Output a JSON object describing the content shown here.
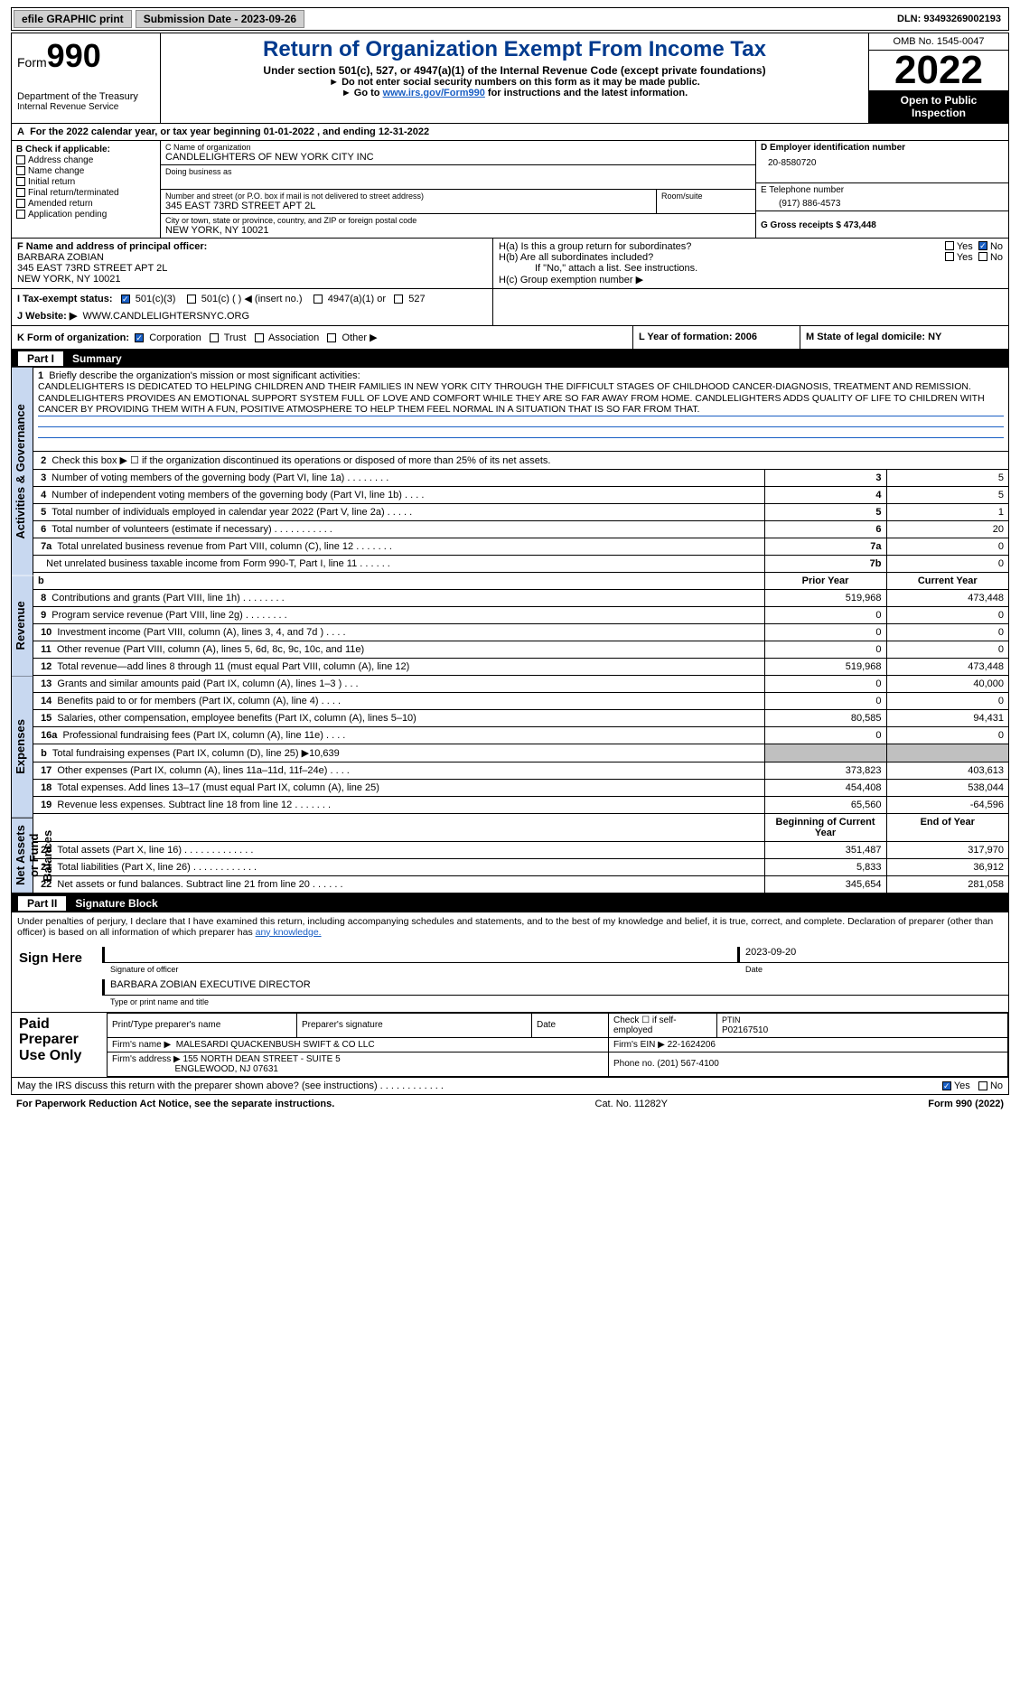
{
  "topbar": {
    "efile": "efile GRAPHIC print",
    "submission_label": "Submission Date - 2023-09-26",
    "dln": "DLN: 93493269002193"
  },
  "header": {
    "form_prefix": "Form",
    "form_num": "990",
    "dept": "Department of the Treasury",
    "irs": "Internal Revenue Service",
    "title": "Return of Organization Exempt From Income Tax",
    "sub1": "Under section 501(c), 527, or 4947(a)(1) of the Internal Revenue Code (except private foundations)",
    "sub2": "Do not enter social security numbers on this form as it may be made public.",
    "sub3_pre": "Go to ",
    "sub3_link": "www.irs.gov/Form990",
    "sub3_post": " for instructions and the latest information.",
    "omb": "OMB No. 1545-0047",
    "year": "2022",
    "open": "Open to Public Inspection"
  },
  "lineA": "For the 2022 calendar year, or tax year beginning 01-01-2022    , and ending 12-31-2022",
  "B": {
    "title": "B Check if applicable:",
    "items": [
      "Address change",
      "Name change",
      "Initial return",
      "Final return/terminated",
      "Amended return",
      "Application pending"
    ]
  },
  "C": {
    "name_label": "C Name of organization",
    "name": "CANDLELIGHTERS OF NEW YORK CITY INC",
    "dba_label": "Doing business as",
    "street_label": "Number and street (or P.O. box if mail is not delivered to street address)",
    "street": "345 EAST 73RD STREET APT 2L",
    "room_label": "Room/suite",
    "city_label": "City or town, state or province, country, and ZIP or foreign postal code",
    "city": "NEW YORK, NY  10021"
  },
  "D": {
    "label": "D Employer identification number",
    "value": "20-8580720"
  },
  "E": {
    "label": "E Telephone number",
    "value": "(917) 886-4573"
  },
  "G": "G Gross receipts $ 473,448",
  "F": {
    "label": "F  Name and address of principal officer:",
    "name": "BARBARA ZOBIAN",
    "addr1": "345 EAST 73RD STREET APT 2L",
    "addr2": "NEW YORK, NY  10021"
  },
  "H": {
    "a": "H(a)  Is this a group return for subordinates?",
    "b": "H(b)  Are all subordinates included?",
    "b_note": "If \"No,\" attach a list. See instructions.",
    "c": "H(c)  Group exemption number ▶",
    "yes": "Yes",
    "no": "No"
  },
  "I": {
    "label": "I    Tax-exempt status:",
    "opts": [
      "501(c)(3)",
      "501(c) (   ) ◀ (insert no.)",
      "4947(a)(1) or",
      "527"
    ]
  },
  "J": {
    "label": "J   Website: ▶",
    "value": "WWW.CANDLELIGHTERSNYC.ORG"
  },
  "K": {
    "label": "K Form of organization:",
    "opts": [
      "Corporation",
      "Trust",
      "Association",
      "Other ▶"
    ]
  },
  "L": "L Year of formation: 2006",
  "M": "M State of legal domicile: NY",
  "partI": {
    "num": "Part I",
    "title": "Summary"
  },
  "sidebar": {
    "ag": "Activities & Governance",
    "rev": "Revenue",
    "exp": "Expenses",
    "net": "Net Assets or Fund Balances"
  },
  "summary": {
    "l1_label": "Briefly describe the organization's mission or most significant activities:",
    "l1_text": "CANDLELIGHTERS IS DEDICATED TO HELPING CHILDREN AND THEIR FAMILIES IN NEW YORK CITY THROUGH THE DIFFICULT STAGES OF CHILDHOOD CANCER-DIAGNOSIS, TREATMENT AND REMISSION. CANDLELIGHTERS PROVIDES AN EMOTIONAL SUPPORT SYSTEM FULL OF LOVE AND COMFORT WHILE THEY ARE SO FAR AWAY FROM HOME. CANDLELIGHTERS ADDS QUALITY OF LIFE TO CHILDREN WITH CANCER BY PROVIDING THEM WITH A FUN, POSITIVE ATMOSPHERE TO HELP THEM FEEL NORMAL IN A SITUATION THAT IS SO FAR FROM THAT.",
    "l2": "Check this box ▶  ☐  if the organization discontinued its operations or disposed of more than 25% of its net assets.",
    "rows_ag": [
      {
        "n": "3",
        "d": "Number of voting members of the governing body (Part VI, line 1a)   .   .   .   .   .   .   .   .",
        "k": "3",
        "v": "5"
      },
      {
        "n": "4",
        "d": "Number of independent voting members of the governing body (Part VI, line 1b)   .   .   .   .",
        "k": "4",
        "v": "5"
      },
      {
        "n": "5",
        "d": "Total number of individuals employed in calendar year 2022 (Part V, line 2a)   .   .   .   .   .",
        "k": "5",
        "v": "1"
      },
      {
        "n": "6",
        "d": "Total number of volunteers (estimate if necessary)   .   .   .   .   .   .   .   .   .   .   .",
        "k": "6",
        "v": "20"
      },
      {
        "n": "7a",
        "d": "Total unrelated business revenue from Part VIII, column (C), line 12   .   .   .   .   .   .   .",
        "k": "7a",
        "v": "0"
      },
      {
        "n": "",
        "d": "Net unrelated business taxable income from Form 990-T, Part I, line 11   .   .   .   .   .   .",
        "k": "7b",
        "v": "0"
      }
    ],
    "hdr_prior": "Prior Year",
    "hdr_curr": "Current Year",
    "rows_rev": [
      {
        "n": "8",
        "d": "Contributions and grants (Part VIII, line 1h)   .   .   .   .   .   .   .   .",
        "p": "519,968",
        "c": "473,448"
      },
      {
        "n": "9",
        "d": "Program service revenue (Part VIII, line 2g)   .   .   .   .   .   .   .   .",
        "p": "0",
        "c": "0"
      },
      {
        "n": "10",
        "d": "Investment income (Part VIII, column (A), lines 3, 4, and 7d )   .   .   .   .",
        "p": "0",
        "c": "0"
      },
      {
        "n": "11",
        "d": "Other revenue (Part VIII, column (A), lines 5, 6d, 8c, 9c, 10c, and 11e)",
        "p": "0",
        "c": "0"
      },
      {
        "n": "12",
        "d": "Total revenue—add lines 8 through 11 (must equal Part VIII, column (A), line 12)",
        "p": "519,968",
        "c": "473,448"
      }
    ],
    "rows_exp": [
      {
        "n": "13",
        "d": "Grants and similar amounts paid (Part IX, column (A), lines 1–3 )   .   .   .",
        "p": "0",
        "c": "40,000"
      },
      {
        "n": "14",
        "d": "Benefits paid to or for members (Part IX, column (A), line 4)   .   .   .   .",
        "p": "0",
        "c": "0"
      },
      {
        "n": "15",
        "d": "Salaries, other compensation, employee benefits (Part IX, column (A), lines 5–10)",
        "p": "80,585",
        "c": "94,431"
      },
      {
        "n": "16a",
        "d": "Professional fundraising fees (Part IX, column (A), line 11e)   .   .   .   .",
        "p": "0",
        "c": "0"
      },
      {
        "n": "b",
        "d": "Total fundraising expenses (Part IX, column (D), line 25) ▶10,639",
        "p": "",
        "c": "",
        "grey": true
      },
      {
        "n": "17",
        "d": "Other expenses (Part IX, column (A), lines 11a–11d, 11f–24e)   .   .   .   .",
        "p": "373,823",
        "c": "403,613"
      },
      {
        "n": "18",
        "d": "Total expenses. Add lines 13–17 (must equal Part IX, column (A), line 25)",
        "p": "454,408",
        "c": "538,044"
      },
      {
        "n": "19",
        "d": "Revenue less expenses. Subtract line 18 from line 12   .   .   .   .   .   .   .",
        "p": "65,560",
        "c": "-64,596"
      }
    ],
    "hdr_beg": "Beginning of Current Year",
    "hdr_end": "End of Year",
    "rows_net": [
      {
        "n": "20",
        "d": "Total assets (Part X, line 16)   .   .   .   .   .   .   .   .   .   .   .   .   .",
        "p": "351,487",
        "c": "317,970"
      },
      {
        "n": "21",
        "d": "Total liabilities (Part X, line 26)   .   .   .   .   .   .   .   .   .   .   .   .",
        "p": "5,833",
        "c": "36,912"
      },
      {
        "n": "22",
        "d": "Net assets or fund balances. Subtract line 21 from line 20   .   .   .   .   .   .",
        "p": "345,654",
        "c": "281,058"
      }
    ]
  },
  "partII": {
    "num": "Part II",
    "title": "Signature Block"
  },
  "sig": {
    "pen": "Under penalties of perjury, I declare that I have examined this return, including accompanying schedules and statements, and to the best of my knowledge and belief, it is true, correct, and complete. Declaration of preparer (other than officer) is based on all information of which preparer has ",
    "pen_link": "any knowledge.",
    "sign_here": "Sign Here",
    "sig_officer": "Signature of officer",
    "date": "2023-09-20",
    "date_label": "Date",
    "name": "BARBARA ZOBIAN  EXECUTIVE DIRECTOR",
    "name_label": "Type or print name and title"
  },
  "paid": {
    "lbl": "Paid Preparer Use Only",
    "h1": "Print/Type preparer's name",
    "h2": "Preparer's signature",
    "h3": "Date",
    "h4": "Check ☐ if self-employed",
    "h5_l": "PTIN",
    "h5": "P02167510",
    "firm_l": "Firm's name    ▶",
    "firm": "MALESARDI QUACKENBUSH SWIFT & CO LLC",
    "ein_l": "Firm's EIN ▶",
    "ein": "22-1624206",
    "addr_l": "Firm's address ▶",
    "addr1": "155 NORTH DEAN STREET - SUITE 5",
    "addr2": "ENGLEWOOD, NJ  07631",
    "phone_l": "Phone no.",
    "phone": "(201) 567-4100"
  },
  "discuss": {
    "q": "May the IRS discuss this return with the preparer shown above? (see instructions)   .   .   .   .   .   .   .   .   .   .   .   .",
    "yes": "Yes",
    "no": "No"
  },
  "footer": {
    "pra": "For Paperwork Reduction Act Notice, see the separate instructions.",
    "cat": "Cat. No. 11282Y",
    "form": "Form 990 (2022)"
  }
}
